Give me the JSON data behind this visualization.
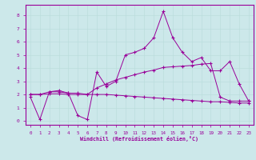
{
  "xlabel": "Windchill (Refroidissement éolien,°C)",
  "bg_color": "#cce8ea",
  "line_color": "#990099",
  "grid_color": "#aacccc",
  "xlim": [
    -0.5,
    23.5
  ],
  "ylim": [
    -0.3,
    8.8
  ],
  "xticks": [
    0,
    1,
    2,
    3,
    4,
    5,
    6,
    7,
    8,
    9,
    10,
    11,
    12,
    13,
    14,
    15,
    16,
    17,
    18,
    19,
    20,
    21,
    22,
    23
  ],
  "yticks": [
    0,
    1,
    2,
    3,
    4,
    5,
    6,
    7,
    8
  ],
  "line1_x": [
    0,
    1,
    2,
    3,
    4,
    5,
    6,
    7,
    8,
    9,
    10,
    11,
    12,
    13,
    14,
    15,
    16,
    17,
    18,
    19,
    20,
    21,
    22,
    23
  ],
  "line1_y": [
    1.8,
    0.1,
    2.2,
    2.2,
    2.1,
    0.4,
    0.1,
    3.7,
    2.6,
    3.0,
    5.0,
    5.2,
    5.5,
    6.3,
    8.3,
    6.3,
    5.2,
    4.5,
    4.8,
    3.8,
    3.8,
    4.5,
    2.8,
    1.5
  ],
  "line2_x": [
    0,
    1,
    2,
    3,
    4,
    5,
    6,
    7,
    8,
    9,
    10,
    11,
    12,
    13,
    14,
    15,
    16,
    17,
    18,
    19,
    20,
    21,
    22,
    23
  ],
  "line2_y": [
    2.0,
    2.0,
    2.2,
    2.3,
    2.1,
    2.1,
    2.0,
    2.5,
    2.8,
    3.1,
    3.3,
    3.5,
    3.7,
    3.85,
    4.05,
    4.1,
    4.15,
    4.2,
    4.3,
    4.35,
    1.8,
    1.5,
    1.5,
    1.5
  ],
  "line3_x": [
    0,
    1,
    2,
    3,
    4,
    5,
    6,
    7,
    8,
    9,
    10,
    11,
    12,
    13,
    14,
    15,
    16,
    17,
    18,
    19,
    20,
    21,
    22,
    23
  ],
  "line3_y": [
    2.0,
    2.0,
    2.05,
    2.05,
    2.0,
    2.0,
    2.0,
    2.0,
    2.0,
    1.95,
    1.9,
    1.85,
    1.8,
    1.75,
    1.7,
    1.65,
    1.6,
    1.55,
    1.5,
    1.45,
    1.45,
    1.4,
    1.35,
    1.35
  ]
}
